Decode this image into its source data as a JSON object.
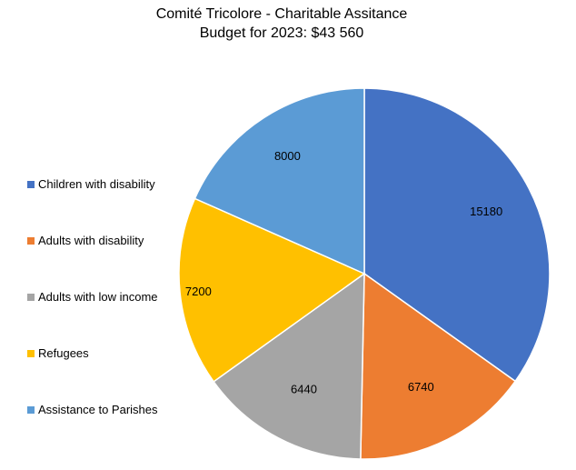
{
  "chart_data": {
    "type": "pie",
    "title": "Comité Tricolore - Charitable Assitance",
    "subtitle": "Budget for 2023: $43 560",
    "categories": [
      "Children with disability",
      "Adults with disability",
      "Adults with low income",
      "Refugees",
      "Assistance to Parishes"
    ],
    "values": [
      15180,
      6740,
      6440,
      7200,
      8000
    ],
    "data_labels": [
      "15180",
      "6740",
      "6440",
      "7200",
      "8000"
    ],
    "colors": [
      "#4472C4",
      "#ED7D31",
      "#A5A5A5",
      "#FFC000",
      "#5B9BD5"
    ],
    "legend_position": "left"
  }
}
